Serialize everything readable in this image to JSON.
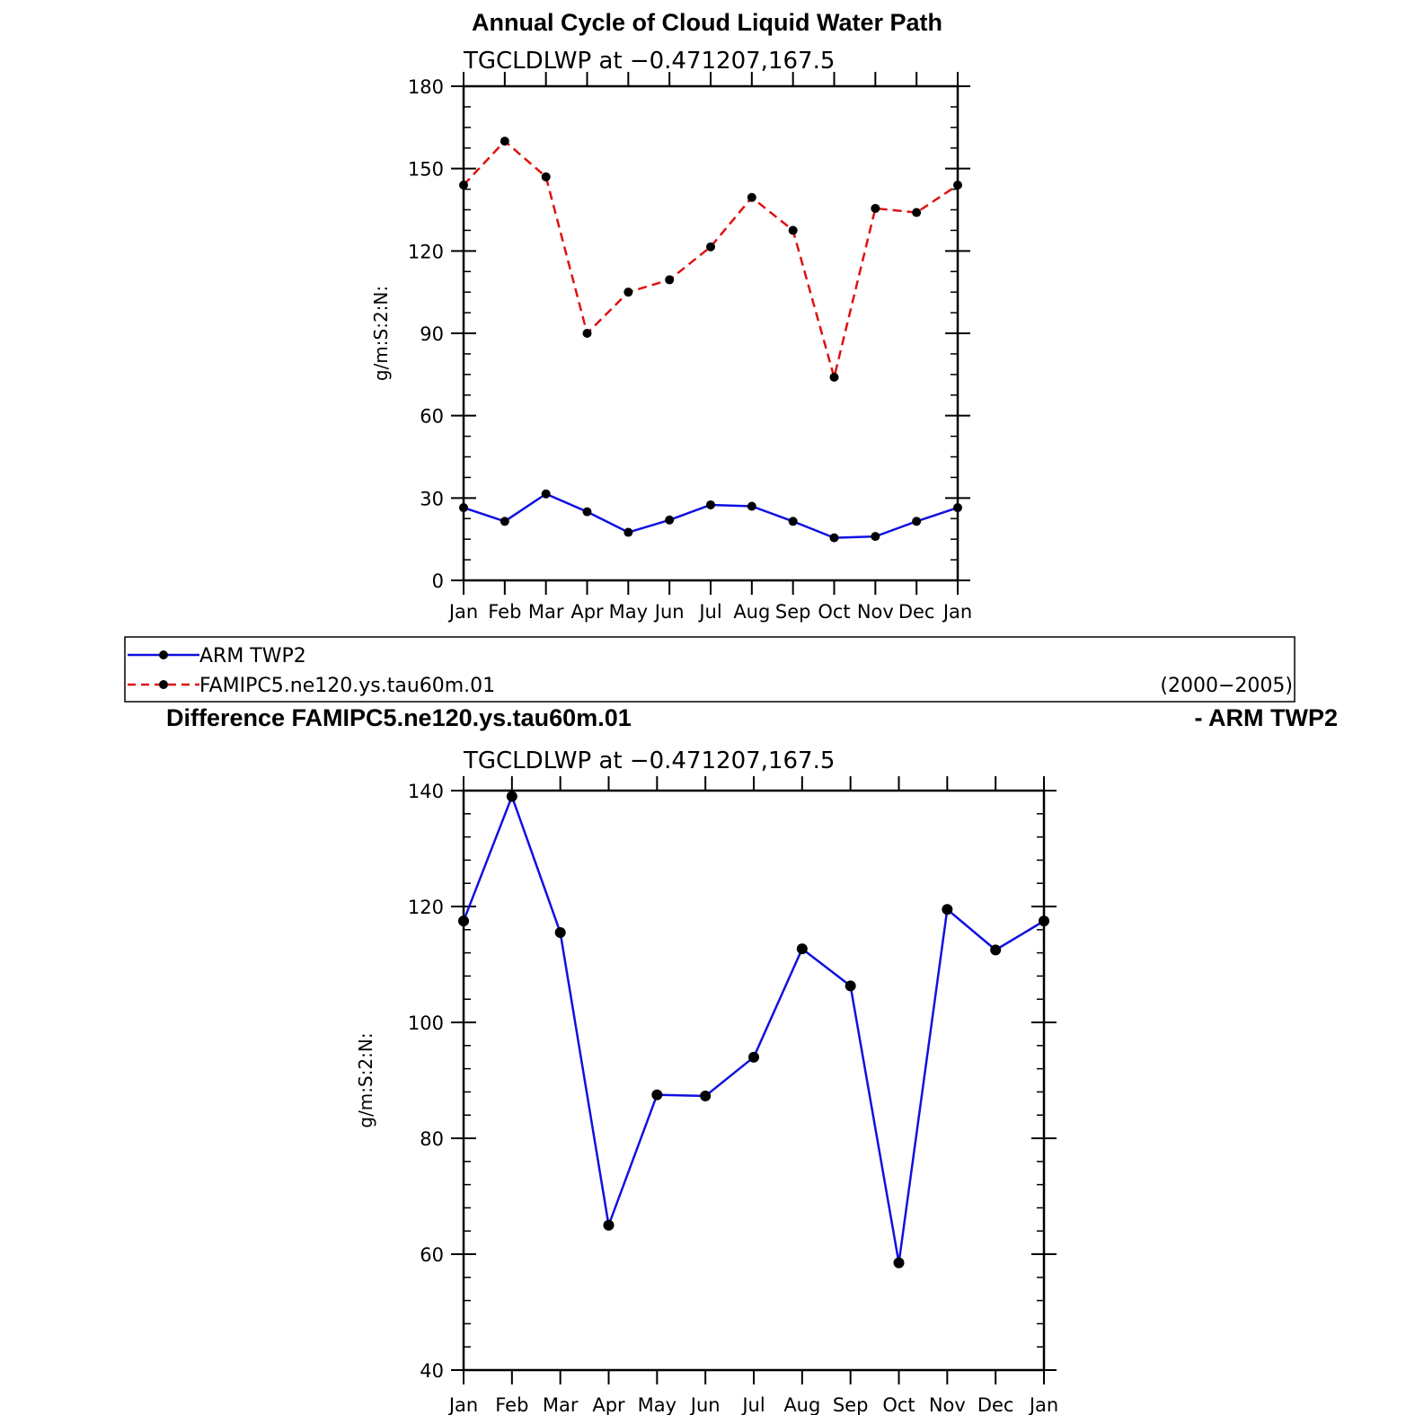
{
  "figure": {
    "top_title": "Annual Cycle of Cloud Liquid Water Path",
    "diff_title_left": "Difference FAMIPC5.ne120.ys.tau60m.01",
    "diff_title_right": "- ARM TWP2"
  },
  "legend": {
    "entries": [
      {
        "label": "ARM TWP2",
        "color": "#1010e0",
        "dash": "solid"
      },
      {
        "label": "FAMIPC5.ne120.ys.tau60m.01",
        "color": "#e01010",
        "dash": "dashed"
      }
    ],
    "period": "(2000−2005)"
  },
  "chart_data": [
    {
      "type": "line",
      "title": "Annual Cycle of Cloud Liquid Water Path",
      "subtitle": "TGCLDLWP  at  −0.471207,167.5",
      "xlabel": "",
      "ylabel": "g/m:S:2:N:",
      "categories": [
        "Jan",
        "Feb",
        "Mar",
        "Apr",
        "May",
        "Jun",
        "Jul",
        "Aug",
        "Sep",
        "Oct",
        "Nov",
        "Dec",
        "Jan"
      ],
      "ylim": [
        0,
        180
      ],
      "yticks": [
        "0",
        "30",
        "60",
        "90",
        "120",
        "150",
        "180"
      ],
      "series": [
        {
          "name": "ARM TWP2",
          "color": "#1010e0",
          "dash": "solid",
          "values": [
            26.5,
            21.5,
            31.5,
            25,
            17.5,
            22,
            27.5,
            27,
            21.5,
            15.5,
            16,
            21.5,
            26.5
          ]
        },
        {
          "name": "FAMIPC5.ne120.ys.tau60m.01",
          "color": "#e01010",
          "dash": "dashed",
          "values": [
            144,
            160,
            147,
            90,
            105,
            109.5,
            121.5,
            139.5,
            127.5,
            74,
            135.5,
            134,
            144
          ]
        }
      ]
    },
    {
      "type": "line",
      "title": "Difference FAMIPC5.ne120.ys.tau60m.01 - ARM TWP2",
      "subtitle": "TGCLDLWP  at  −0.471207,167.5",
      "xlabel": "",
      "ylabel": "g/m:S:2:N:",
      "categories": [
        "Jan",
        "Feb",
        "Mar",
        "Apr",
        "May",
        "Jun",
        "Jul",
        "Aug",
        "Sep",
        "Oct",
        "Nov",
        "Dec",
        "Jan"
      ],
      "ylim": [
        40,
        140
      ],
      "yticks": [
        "40",
        "60",
        "80",
        "100",
        "120",
        "140"
      ],
      "series": [
        {
          "name": "Difference",
          "color": "#1010e0",
          "dash": "solid",
          "values": [
            117.5,
            139,
            115.5,
            65,
            87.5,
            87.3,
            94,
            112.7,
            106.3,
            58.5,
            119.5,
            112.5,
            117.5
          ]
        }
      ]
    }
  ]
}
